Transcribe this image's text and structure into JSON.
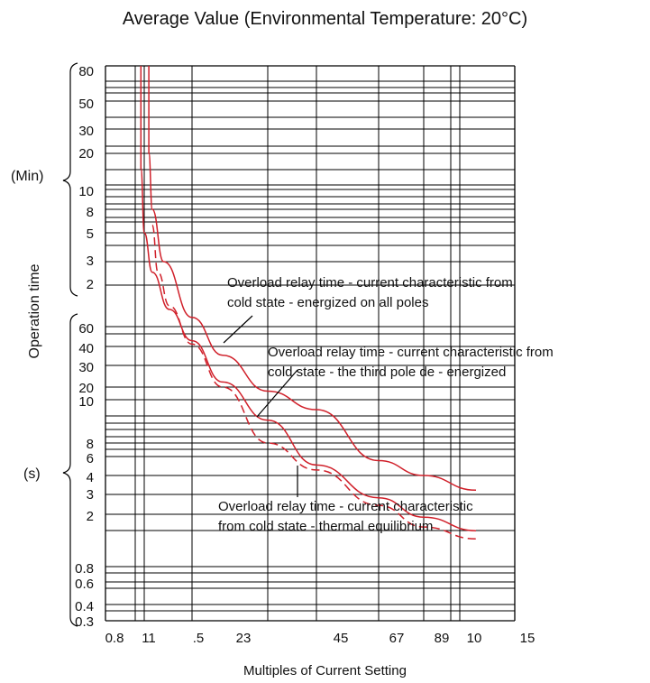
{
  "chart_data": {
    "type": "line",
    "title": "Average Value (Environmental Temperature: 20°C)",
    "xlabel": "Multiples of Current Setting",
    "ylabel": "Operation time",
    "y_units": {
      "minutes": "(Min)",
      "seconds": "(s)"
    },
    "x_tick_labels": [
      "0.8",
      "11",
      ".5",
      "23",
      "45",
      "67",
      "89",
      "10",
      "15"
    ],
    "y_minute_tick_labels": [
      "80",
      "50",
      "30",
      "20",
      "10",
      "8",
      "5",
      "3",
      "2"
    ],
    "y_second_tick_labels": [
      "60",
      "40",
      "30",
      "20",
      "10",
      "8",
      "6",
      "4",
      "3",
      "2",
      "0.8",
      "0.6",
      "0.4",
      "0.3"
    ],
    "grid": true,
    "series": [
      {
        "name": "Overload relay time - current characteristic from cold state - energized on all poles",
        "color": "#d0202a",
        "dash": "solid",
        "x": [
          1.12,
          1.12,
          1.15,
          1.25,
          1.5,
          2,
          3,
          4,
          6,
          8,
          9.5
        ],
        "y_seconds": [
          4800,
          1200,
          480,
          180,
          70,
          35,
          16,
          9.5,
          5.5,
          4,
          3.2
        ]
      },
      {
        "name": "Overload relay time - current characteristic from cold state - the third pole de - energized",
        "color": "#d0202a",
        "dash": "solid",
        "x": [
          1.05,
          1.05,
          1.08,
          1.15,
          1.3,
          1.5,
          2,
          3,
          4,
          6,
          8,
          9.5
        ],
        "y_seconds": [
          4800,
          900,
          300,
          150,
          80,
          45,
          22,
          9,
          5,
          2.8,
          1.9,
          1.5
        ]
      },
      {
        "name": "Overload relay time - current characteristic from cold state - thermal equilibrium",
        "color": "#d0202a",
        "dash": "dashed",
        "x": [
          1.15,
          1.2,
          1.3,
          1.5,
          2,
          3,
          4,
          6,
          8,
          9.5
        ],
        "y_seconds": [
          350,
          150,
          85,
          42,
          20,
          8,
          4.5,
          2.4,
          1.6,
          1.3
        ]
      }
    ],
    "annotations": [
      {
        "lines": [
          "Overload relay time - current characteristic from",
          "cold state - energized on all poles"
        ]
      },
      {
        "lines": [
          "Overload relay time - current characteristic from",
          "cold state - the third pole de - energized"
        ]
      },
      {
        "lines": [
          "Overload relay time - current characteristic",
          "from cold state - thermal equilibrium"
        ]
      }
    ]
  }
}
